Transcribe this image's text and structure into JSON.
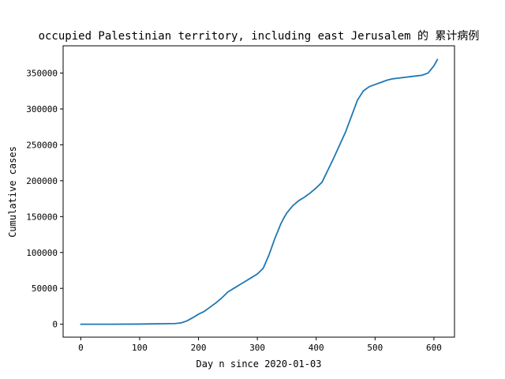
{
  "chart_data": {
    "type": "line",
    "title": "occupied Palestinian territory, including east Jerusalem 的 累计病例",
    "xlabel": "Day n since 2020-01-03",
    "ylabel": "Cumulative cases",
    "xlim": [
      -30,
      635
    ],
    "ylim": [
      -18000,
      388000
    ],
    "xticks": [
      0,
      100,
      200,
      300,
      400,
      500,
      600
    ],
    "yticks": [
      0,
      50000,
      100000,
      150000,
      200000,
      250000,
      300000,
      350000
    ],
    "grid": false,
    "color": "#1f77b4",
    "series": [
      {
        "x": [
          0,
          50,
          100,
          120,
          140,
          160,
          170,
          180,
          190,
          200,
          210,
          220,
          230,
          240,
          250,
          260,
          270,
          280,
          290,
          300,
          310,
          320,
          330,
          340,
          345,
          350,
          360,
          370,
          380,
          390,
          400,
          410,
          420,
          430,
          440,
          450,
          460,
          470,
          480,
          490,
          500,
          510,
          520,
          530,
          540,
          550,
          560,
          570,
          580,
          590,
          600,
          606
        ],
        "y": [
          0,
          0,
          200,
          500,
          700,
          1000,
          1800,
          4500,
          9000,
          14000,
          18000,
          24000,
          30000,
          37000,
          45000,
          50000,
          55000,
          60000,
          65000,
          70000,
          78000,
          97000,
          120000,
          140000,
          148000,
          155000,
          165000,
          172000,
          177000,
          183000,
          190000,
          198000,
          215000,
          232000,
          250000,
          268000,
          290000,
          312000,
          325000,
          331000,
          334000,
          337000,
          340000,
          342000,
          343000,
          344000,
          345000,
          346000,
          347000,
          350000,
          360000,
          369000
        ]
      }
    ]
  }
}
